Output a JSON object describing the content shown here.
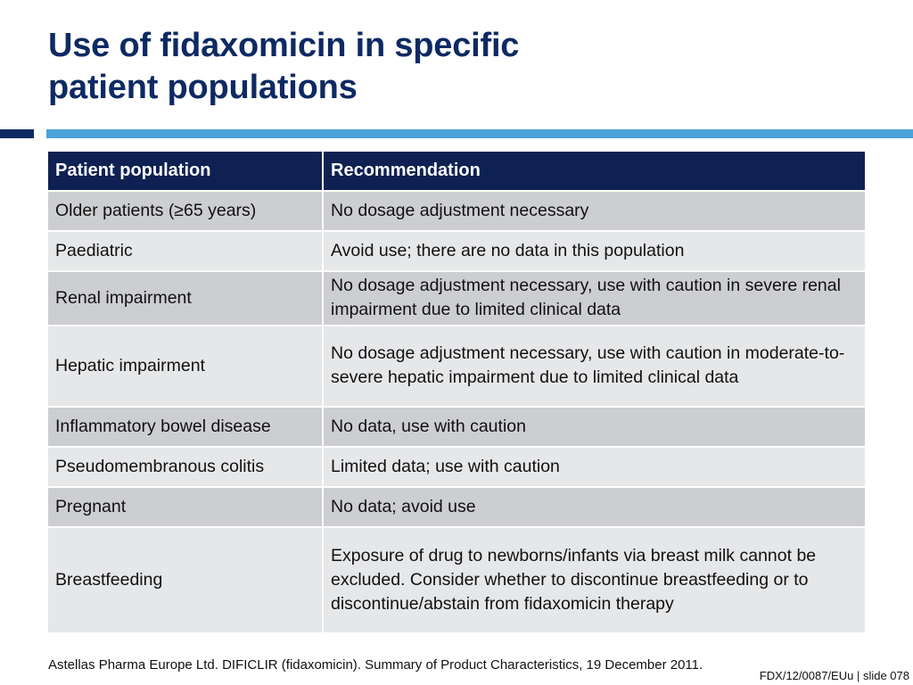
{
  "slide": {
    "title_lines": [
      "Use of fidaxomicin in specific",
      "patient populations"
    ],
    "colors": {
      "title": "#0e2a63",
      "header_bg": "#0e2152",
      "accent_bar": "#4ba3d9",
      "row_dark": "#cdced1",
      "row_light": "#e6e7e9"
    }
  },
  "table": {
    "headers": [
      "Patient population",
      "Recommendation"
    ],
    "rows": [
      {
        "population": "Older patients (≥65 years)",
        "recommendation": "No dosage adjustment necessary"
      },
      {
        "population": "Paediatric",
        "recommendation": "Avoid use; there are no data in this population"
      },
      {
        "population": "Renal impairment",
        "recommendation": "No dosage adjustment necessary, use with caution in severe renal impairment due to limited clinical data"
      },
      {
        "population": "Hepatic impairment",
        "recommendation": "No dosage adjustment necessary, use with caution in moderate-to-severe hepatic impairment due to limited clinical data"
      },
      {
        "population": "Inflammatory bowel disease",
        "recommendation": "No data, use with caution"
      },
      {
        "population": "Pseudomembranous colitis",
        "recommendation": "Limited data; use with caution"
      },
      {
        "population": "Pregnant",
        "recommendation": "No data; avoid use"
      },
      {
        "population": "Breastfeeding",
        "recommendation": "Exposure of drug to newborns/infants via breast milk cannot be excluded. Consider whether to discontinue breastfeeding or to discontinue/abstain from fidaxomicin therapy"
      }
    ]
  },
  "footer": {
    "reference": "Astellas Pharma Europe Ltd. DIFICLIR (fidaxomicin). Summary of Product Characteristics, 19 December 2011.",
    "slide_id": "FDX/12/0087/EUu | slide 078"
  }
}
